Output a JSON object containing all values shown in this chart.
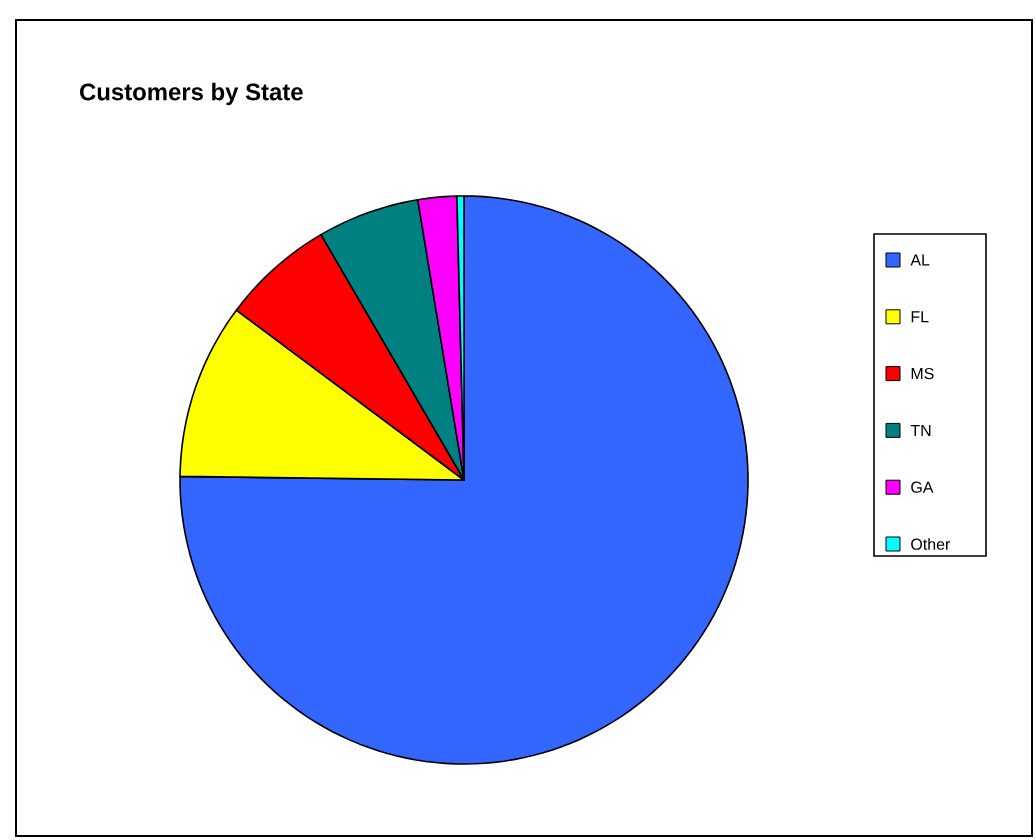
{
  "chart_data": {
    "type": "pie",
    "title": "Customers by State",
    "categories": [
      "AL",
      "FL",
      "MS",
      "TN",
      "GA",
      "Other"
    ],
    "values": [
      75.2,
      10,
      6.4,
      5.8,
      2.2,
      0.4
    ],
    "colors": [
      "#3366ff",
      "#ffff00",
      "#ff0000",
      "#008080",
      "#ff00ff",
      "#00ffff"
    ],
    "legend": "right"
  }
}
